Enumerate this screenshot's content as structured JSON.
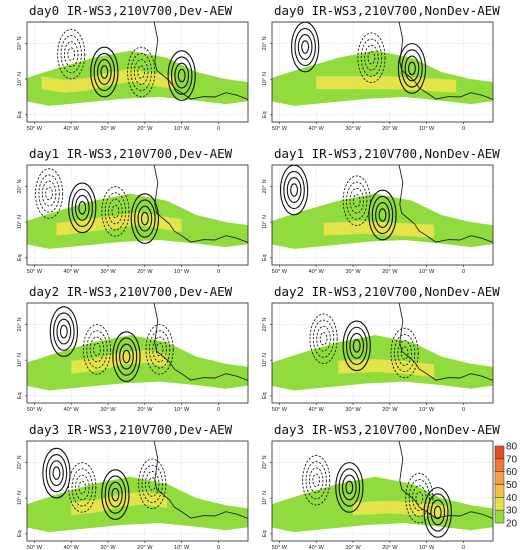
{
  "chart_data": {
    "type": "contour map panels",
    "panel_x_labels": [
      "50° W",
      "40° W",
      "30° W",
      "20° W",
      "10° W",
      "0"
    ],
    "panel_y_labels": [
      "20° N",
      "10° N",
      "Eq"
    ],
    "lon_range": [
      -52,
      8
    ],
    "lat_range": [
      -2,
      26
    ],
    "shading_levels": [
      20,
      30,
      40,
      50,
      60,
      70,
      80
    ],
    "shading_colors": {
      "20": "#8fdc3c",
      "30": "#e4e347",
      "40": "#f4c049",
      "50": "#f2a043",
      "60": "#ec7a33",
      "70": "#e24c28",
      "80": "#c81f1f"
    },
    "panels": [
      {
        "title": "day0 IR-WS3,210V700,Dev-AEW",
        "row": 0,
        "col": 0,
        "band_shift": 0,
        "core_yellow": [
          [
            -48,
            9
          ],
          [
            -42,
            8
          ],
          [
            -36,
            8.5
          ],
          [
            -30,
            10
          ],
          [
            -24,
            11
          ],
          [
            -18,
            10
          ],
          [
            -12,
            9
          ]
        ],
        "vortices": [
          {
            "lon": -31,
            "lat": 12,
            "sign": 1
          },
          {
            "lon": -21,
            "lat": 12,
            "sign": -1
          },
          {
            "lon": -10,
            "lat": 11,
            "sign": 1
          },
          {
            "lon": -40,
            "lat": 17,
            "sign": -1
          }
        ]
      },
      {
        "title": "day0 IR-WS3,210V700,NonDev-AEW",
        "row": 0,
        "col": 1,
        "band_shift": 0,
        "core_yellow": [
          [
            -40,
            9
          ],
          [
            -30,
            9
          ],
          [
            -20,
            9
          ],
          [
            -10,
            8.5
          ],
          [
            -2,
            8
          ]
        ],
        "vortices": [
          {
            "lon": -43,
            "lat": 19,
            "sign": 1
          },
          {
            "lon": -25,
            "lat": 16,
            "sign": -1
          },
          {
            "lon": -14,
            "lat": 13,
            "sign": 1
          }
        ]
      },
      {
        "title": "day1 IR-WS3,210V700,Dev-AEW",
        "row": 1,
        "col": 0,
        "band_shift": 0,
        "core_yellow": [
          [
            -44,
            8
          ],
          [
            -36,
            9
          ],
          [
            -28,
            10
          ],
          [
            -22,
            11
          ],
          [
            -16,
            10
          ],
          [
            -10,
            9
          ]
        ],
        "vortices": [
          {
            "lon": -37,
            "lat": 14,
            "sign": 1
          },
          {
            "lon": -28,
            "lat": 13,
            "sign": -1
          },
          {
            "lon": -20,
            "lat": 11,
            "sign": 1
          },
          {
            "lon": -46,
            "lat": 18,
            "sign": -1
          }
        ]
      },
      {
        "title": "day1 IR-WS3,210V700,NonDev-AEW",
        "row": 1,
        "col": 1,
        "band_shift": 0,
        "core_yellow": [
          [
            -38,
            8
          ],
          [
            -28,
            8.5
          ],
          [
            -18,
            8
          ],
          [
            -8,
            7.5
          ]
        ],
        "vortices": [
          {
            "lon": -46,
            "lat": 19,
            "sign": 1
          },
          {
            "lon": -29,
            "lat": 16,
            "sign": -1
          },
          {
            "lon": -22,
            "lat": 12,
            "sign": 1
          }
        ]
      },
      {
        "title": "day2 IR-WS3,210V700,Dev-AEW",
        "row": 2,
        "col": 0,
        "band_shift": 1,
        "core_yellow": [
          [
            -40,
            8
          ],
          [
            -32,
            9
          ],
          [
            -26,
            10.5
          ],
          [
            -20,
            11
          ],
          [
            -14,
            10
          ]
        ],
        "vortices": [
          {
            "lon": -42,
            "lat": 18,
            "sign": 1
          },
          {
            "lon": -33,
            "lat": 13,
            "sign": -1
          },
          {
            "lon": -25,
            "lat": 11,
            "sign": 1
          },
          {
            "lon": -16,
            "lat": 13,
            "sign": -1
          }
        ]
      },
      {
        "title": "day2 IR-WS3,210V700,NonDev-AEW",
        "row": 2,
        "col": 1,
        "band_shift": 1,
        "core_yellow": [
          [
            -34,
            8
          ],
          [
            -24,
            8.5
          ],
          [
            -16,
            8
          ],
          [
            -8,
            7
          ]
        ],
        "vortices": [
          {
            "lon": -38,
            "lat": 16,
            "sign": -1
          },
          {
            "lon": -29,
            "lat": 14,
            "sign": 1
          },
          {
            "lon": -16,
            "lat": 12,
            "sign": -1
          }
        ]
      },
      {
        "title": "day3 IR-WS3,210V700,Dev-AEW",
        "row": 3,
        "col": 0,
        "band_shift": 2,
        "core_yellow": [
          [
            -40,
            7
          ],
          [
            -32,
            8
          ],
          [
            -26,
            9.5
          ],
          [
            -20,
            10
          ],
          [
            -14,
            9
          ]
        ],
        "vortices": [
          {
            "lon": -44,
            "lat": 17,
            "sign": 1
          },
          {
            "lon": -37,
            "lat": 13,
            "sign": -1
          },
          {
            "lon": -28,
            "lat": 11,
            "sign": 1
          },
          {
            "lon": -18,
            "lat": 14,
            "sign": -1
          }
        ]
      },
      {
        "title": "day3 IR-WS3,210V700,NonDev-AEW",
        "row": 3,
        "col": 1,
        "band_shift": 2,
        "core_yellow": [
          [
            -30,
            7
          ],
          [
            -20,
            7.5
          ],
          [
            -12,
            7
          ],
          [
            -4,
            6
          ]
        ],
        "vortices": [
          {
            "lon": -40,
            "lat": 15,
            "sign": -1
          },
          {
            "lon": -31,
            "lat": 13,
            "sign": 1
          },
          {
            "lon": -12,
            "lat": 10,
            "sign": -1
          },
          {
            "lon": -7,
            "lat": 6,
            "sign": 1
          }
        ]
      }
    ],
    "colorbar": {
      "levels": [
        20,
        30,
        40,
        50,
        60,
        70,
        80
      ]
    }
  }
}
